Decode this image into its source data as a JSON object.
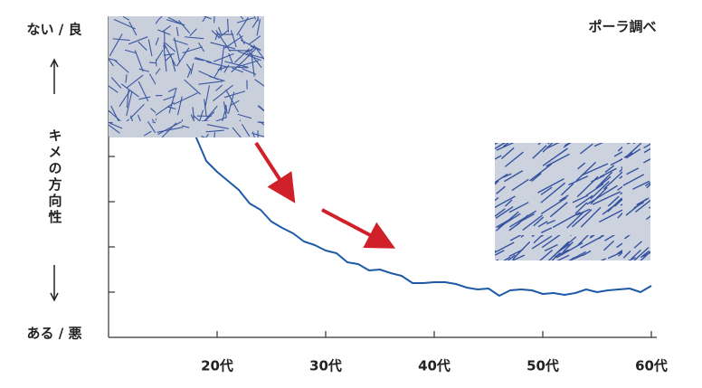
{
  "chart_data": {
    "type": "line",
    "title": "ポーラ調べ",
    "ylabel": "キメの方向性",
    "y_top_label": "ない / 良",
    "y_bottom_label": "ある / 悪",
    "x": [
      18,
      19,
      20,
      21,
      22,
      23,
      24,
      25,
      26,
      27,
      28,
      29,
      30,
      31,
      32,
      33,
      34,
      35,
      36,
      37,
      38,
      39,
      40,
      41,
      42,
      43,
      44,
      45,
      46,
      47,
      48,
      49,
      50,
      51,
      52,
      53,
      54,
      55,
      56,
      57,
      58,
      59,
      60
    ],
    "values": [
      4.46,
      3.9,
      3.66,
      3.46,
      3.26,
      2.96,
      2.82,
      2.56,
      2.42,
      2.3,
      2.12,
      2.04,
      1.92,
      1.86,
      1.66,
      1.62,
      1.48,
      1.5,
      1.42,
      1.36,
      1.2,
      1.2,
      1.22,
      1.22,
      1.18,
      1.1,
      1.06,
      1.08,
      0.92,
      1.04,
      1.06,
      1.04,
      0.96,
      0.98,
      0.94,
      0.98,
      1.06,
      1.0,
      1.04,
      1.06,
      1.08,
      1.0,
      1.14
    ],
    "color": "#1f5aa8",
    "xlim": [
      10,
      61
    ],
    "xticks": [
      {
        "value": 20,
        "label": "20代"
      },
      {
        "value": 30,
        "label": "30代"
      },
      {
        "value": 40,
        "label": "40代"
      },
      {
        "value": 50,
        "label": "50代"
      },
      {
        "value": 60,
        "label": "60代"
      }
    ],
    "ylim": [
      0,
      7
    ],
    "yticks": [
      1,
      2,
      3,
      4,
      5,
      6
    ]
  }
}
